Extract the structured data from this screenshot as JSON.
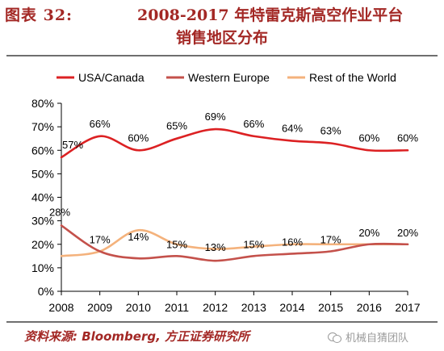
{
  "header": {
    "fig_num": "图表 32:",
    "title_line1": "2008-2017 年特雷克斯高空作业平台",
    "title_line2": "销售地区分布"
  },
  "footer": {
    "source": "资料来源: Bloomberg, 方正证券研究所",
    "watermark": "机械自猜团队"
  },
  "chart_data": {
    "type": "line",
    "title": "",
    "xlabel": "",
    "ylabel": "",
    "categories": [
      "2008",
      "2009",
      "2010",
      "2011",
      "2012",
      "2013",
      "2014",
      "2015",
      "2016",
      "2017"
    ],
    "ylim": [
      0,
      80
    ],
    "yticks": [
      "0%",
      "10%",
      "20%",
      "30%",
      "40%",
      "50%",
      "60%",
      "70%",
      "80%"
    ],
    "grid": false,
    "legend_position": "top",
    "series": [
      {
        "name": "USA/Canada",
        "color": "#dc2123",
        "values": [
          57,
          66,
          60,
          65,
          69,
          66,
          64,
          63,
          60,
          60
        ],
        "labels": [
          "57%",
          "66%",
          "60%",
          "65%",
          "69%",
          "66%",
          "64%",
          "63%",
          "60%",
          "60%"
        ]
      },
      {
        "name": "Western Europe",
        "color": "#c4514b",
        "values": [
          28,
          17,
          14,
          15,
          13,
          15,
          16,
          17,
          20,
          20
        ],
        "labels": [
          "28%",
          "17%",
          "14%",
          "15%",
          "13%",
          "15%",
          "16%",
          "17%",
          "20%",
          "20%"
        ]
      },
      {
        "name": "Rest of the World",
        "color": "#f4b27c",
        "values": [
          15,
          17,
          26,
          20,
          18,
          19,
          20,
          20,
          20,
          20
        ]
      }
    ]
  }
}
